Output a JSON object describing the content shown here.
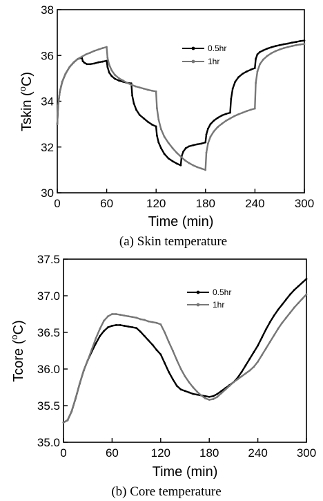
{
  "chart_data": [
    {
      "type": "line",
      "caption": "(a) Skin temperature",
      "xlabel": "Time (min)",
      "ylabel_main": "Tskin (",
      "ylabel_sup": "o",
      "ylabel_end": "C)",
      "xlim": [
        0,
        300
      ],
      "ylim": [
        30,
        38
      ],
      "xticks": [
        0,
        60,
        120,
        180,
        240,
        300
      ],
      "yticks": [
        30,
        32,
        34,
        36,
        38
      ],
      "legend_position": "top-right",
      "grid": false,
      "series": [
        {
          "name": "0.5hr",
          "color": "#000000",
          "x": [
            0,
            1,
            3,
            6,
            10,
            15,
            20,
            25,
            29.9,
            31,
            33,
            36,
            40,
            45,
            50,
            55,
            59.9,
            61,
            63,
            66,
            70,
            75,
            80,
            85,
            89.9,
            91,
            93,
            96,
            100,
            105,
            110,
            115,
            119.9,
            121,
            123,
            126,
            130,
            135,
            140,
            145,
            149.9,
            151,
            153,
            156,
            160,
            165,
            170,
            175,
            179.9,
            181,
            183,
            186,
            190,
            195,
            200,
            205,
            209.9,
            211,
            213,
            216,
            220,
            225,
            230,
            235,
            239.9,
            241,
            243,
            246,
            250,
            255,
            260,
            265,
            270,
            275,
            280,
            285,
            290,
            295,
            300
          ],
          "y": [
            33.0,
            33.8,
            34.4,
            34.85,
            35.2,
            35.5,
            35.7,
            35.85,
            35.9,
            35.75,
            35.68,
            35.62,
            35.62,
            35.65,
            35.7,
            35.73,
            35.77,
            35.5,
            35.25,
            35.1,
            34.98,
            34.9,
            34.85,
            34.8,
            34.78,
            34.25,
            33.9,
            33.62,
            33.4,
            33.25,
            33.1,
            32.98,
            32.9,
            32.5,
            32.2,
            31.95,
            31.7,
            31.5,
            31.38,
            31.28,
            31.2,
            31.6,
            31.8,
            31.95,
            32.03,
            32.08,
            32.12,
            32.15,
            32.2,
            32.55,
            32.8,
            33.0,
            33.15,
            33.28,
            33.38,
            33.45,
            33.5,
            34.1,
            34.55,
            34.85,
            35.05,
            35.2,
            35.3,
            35.38,
            35.45,
            35.85,
            36.05,
            36.15,
            36.22,
            36.3,
            36.36,
            36.41,
            36.45,
            36.49,
            36.52,
            36.56,
            36.59,
            36.63,
            36.65
          ]
        },
        {
          "name": "1hr",
          "color": "#777777",
          "x": [
            0,
            1,
            3,
            6,
            10,
            15,
            20,
            25,
            30,
            35,
            40,
            45,
            50,
            55,
            59.9,
            61,
            63,
            66,
            70,
            75,
            80,
            85,
            90,
            95,
            100,
            105,
            110,
            115,
            119.9,
            121,
            123,
            126,
            130,
            135,
            140,
            145,
            150,
            155,
            160,
            165,
            170,
            175,
            179.9,
            181,
            183,
            186,
            190,
            195,
            200,
            205,
            210,
            215,
            220,
            225,
            230,
            235,
            239.9,
            241,
            243,
            246,
            250,
            255,
            260,
            265,
            270,
            275,
            280,
            285,
            290,
            295,
            300
          ],
          "y": [
            33.0,
            33.8,
            34.4,
            34.85,
            35.2,
            35.5,
            35.7,
            35.85,
            35.95,
            36.05,
            36.12,
            36.2,
            36.26,
            36.32,
            36.37,
            35.9,
            35.6,
            35.35,
            35.15,
            35.0,
            34.9,
            34.8,
            34.72,
            34.65,
            34.6,
            34.55,
            34.5,
            34.46,
            34.43,
            33.7,
            33.2,
            32.78,
            32.45,
            32.18,
            31.95,
            31.75,
            31.58,
            31.42,
            31.3,
            31.2,
            31.12,
            31.06,
            31.0,
            31.75,
            32.15,
            32.45,
            32.68,
            32.88,
            33.02,
            33.15,
            33.25,
            33.35,
            33.43,
            33.5,
            33.57,
            33.63,
            33.68,
            34.8,
            35.3,
            35.62,
            35.82,
            35.98,
            36.1,
            36.19,
            36.26,
            36.32,
            36.37,
            36.41,
            36.45,
            36.48,
            36.5
          ]
        }
      ]
    },
    {
      "type": "line",
      "caption": "(b) Core temperature",
      "xlabel": "Time (min)",
      "ylabel_main": "Tcore (",
      "ylabel_sup": "o",
      "ylabel_end": "C)",
      "xlim": [
        0,
        300
      ],
      "ylim": [
        35.0,
        37.5
      ],
      "xticks": [
        0,
        60,
        120,
        180,
        240,
        300
      ],
      "yticks": [
        35.0,
        35.5,
        36.0,
        36.5,
        37.0,
        37.5
      ],
      "legend_position": "top-right",
      "grid": false,
      "series": [
        {
          "name": "0.5hr",
          "color": "#000000",
          "x": [
            0,
            5,
            10,
            15,
            20,
            25,
            30,
            35,
            40,
            45,
            50,
            55,
            60,
            65,
            70,
            75,
            80,
            85,
            90,
            95,
            100,
            105,
            110,
            115,
            120,
            125,
            130,
            135,
            140,
            145,
            150,
            155,
            160,
            165,
            170,
            175,
            180,
            185,
            190,
            195,
            200,
            205,
            210,
            215,
            220,
            225,
            230,
            235,
            240,
            245,
            250,
            255,
            260,
            265,
            270,
            275,
            280,
            285,
            290,
            295,
            300
          ],
          "y": [
            35.27,
            35.3,
            35.42,
            35.6,
            35.8,
            35.98,
            36.12,
            36.24,
            36.35,
            36.45,
            36.52,
            36.57,
            36.59,
            36.6,
            36.6,
            36.59,
            36.58,
            36.57,
            36.56,
            36.51,
            36.45,
            36.39,
            36.33,
            36.26,
            36.2,
            36.08,
            35.96,
            35.86,
            35.77,
            35.72,
            35.7,
            35.68,
            35.66,
            35.65,
            35.64,
            35.63,
            35.62,
            35.63,
            35.66,
            35.7,
            35.74,
            35.78,
            35.82,
            35.88,
            35.96,
            36.05,
            36.14,
            36.23,
            36.32,
            36.43,
            36.54,
            36.64,
            36.73,
            36.81,
            36.88,
            36.95,
            37.02,
            37.08,
            37.13,
            37.18,
            37.23
          ]
        },
        {
          "name": "1hr",
          "color": "#777777",
          "x": [
            0,
            5,
            10,
            15,
            20,
            25,
            30,
            35,
            40,
            45,
            50,
            55,
            60,
            65,
            70,
            75,
            80,
            85,
            90,
            95,
            100,
            105,
            110,
            115,
            120,
            125,
            130,
            135,
            140,
            145,
            150,
            155,
            160,
            165,
            170,
            175,
            180,
            185,
            190,
            195,
            200,
            205,
            210,
            215,
            220,
            225,
            230,
            235,
            240,
            245,
            250,
            255,
            260,
            265,
            270,
            275,
            280,
            285,
            290,
            295,
            300
          ],
          "y": [
            35.27,
            35.3,
            35.42,
            35.6,
            35.8,
            35.98,
            36.12,
            36.27,
            36.42,
            36.55,
            36.66,
            36.72,
            36.75,
            36.75,
            36.74,
            36.73,
            36.72,
            36.71,
            36.7,
            36.68,
            36.67,
            36.65,
            36.64,
            36.63,
            36.61,
            36.5,
            36.37,
            36.25,
            36.12,
            36.0,
            35.9,
            35.82,
            35.75,
            35.69,
            35.64,
            35.6,
            35.58,
            35.59,
            35.62,
            35.67,
            35.72,
            35.77,
            35.82,
            35.86,
            35.9,
            35.94,
            35.98,
            36.03,
            36.1,
            36.19,
            36.28,
            36.37,
            36.46,
            36.55,
            36.63,
            36.7,
            36.77,
            36.84,
            36.9,
            36.96,
            37.02
          ]
        }
      ]
    }
  ]
}
